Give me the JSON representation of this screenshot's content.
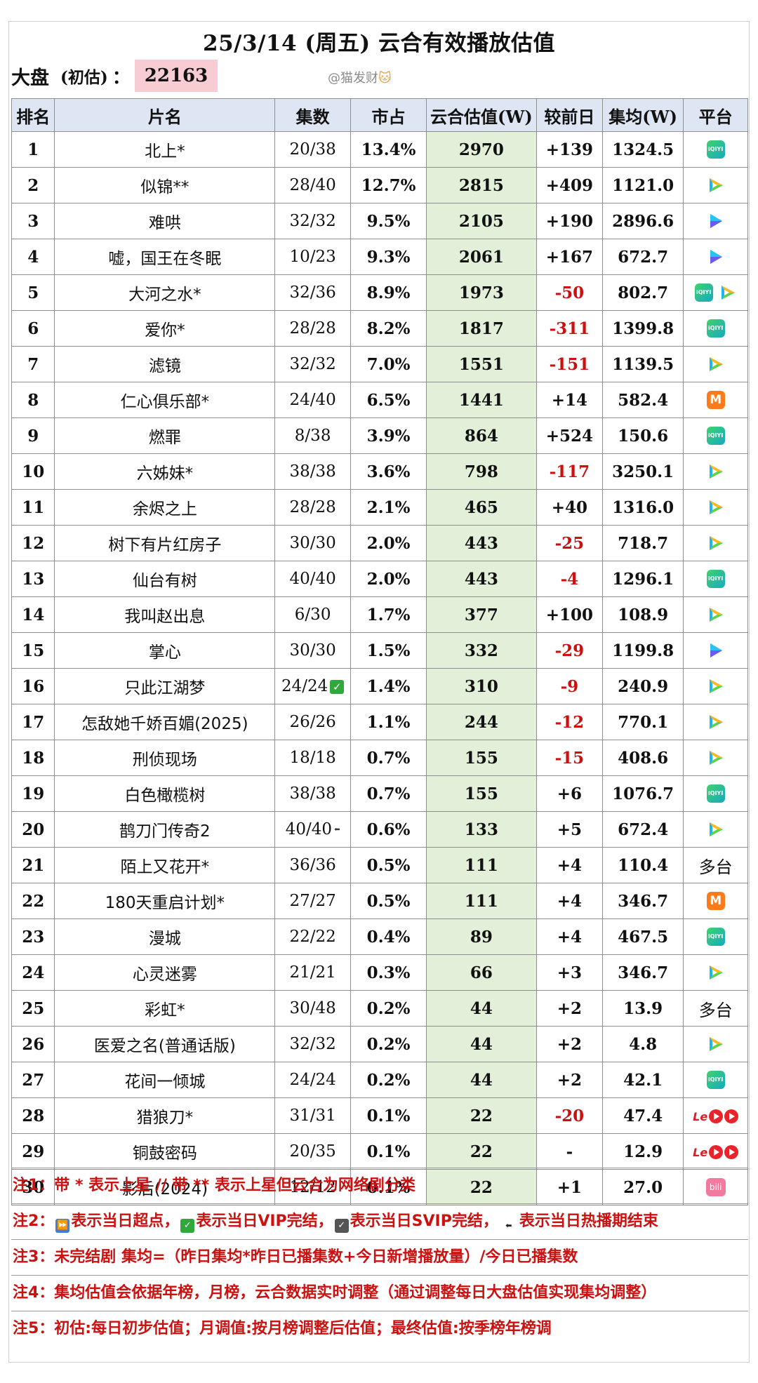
{
  "title": "25/3/14 (周五) 云合有效播放估值",
  "dapan": {
    "label": "大盘",
    "sub": "(初估)",
    "colon": "：",
    "value": "22163"
  },
  "watermark": {
    "text": "@猫发财",
    "emoji": "🐱"
  },
  "headers": {
    "rank": "排名",
    "name": "片名",
    "episodes": "集数",
    "share": "市占",
    "estimate": "云合估值(W)",
    "delta": "较前日",
    "avg": "集均(W)",
    "platform": "平台"
  },
  "rows": [
    {
      "rank": "1",
      "name": "北上*",
      "ep": "20/38",
      "share": "13.4%",
      "est": "2970",
      "delta": "+139",
      "neg": false,
      "avg": "1324.5",
      "plat": [
        "iqiyi"
      ]
    },
    {
      "rank": "2",
      "name": "似锦**",
      "ep": "28/40",
      "share": "12.7%",
      "est": "2815",
      "delta": "+409",
      "neg": false,
      "avg": "1121.0",
      "plat": [
        "tencent"
      ]
    },
    {
      "rank": "3",
      "name": "难哄",
      "ep": "32/32",
      "share": "9.5%",
      "est": "2105",
      "delta": "+190",
      "neg": false,
      "avg": "2896.6",
      "plat": [
        "youku"
      ]
    },
    {
      "rank": "4",
      "name": "嘘，国王在冬眠",
      "ep": "10/23",
      "share": "9.3%",
      "est": "2061",
      "delta": "+167",
      "neg": false,
      "avg": "672.7",
      "plat": [
        "youku"
      ]
    },
    {
      "rank": "5",
      "name": "大河之水*",
      "ep": "32/36",
      "share": "8.9%",
      "est": "1973",
      "delta": "-50",
      "neg": true,
      "avg": "802.7",
      "plat": [
        "iqiyi",
        "tencent"
      ]
    },
    {
      "rank": "6",
      "name": "爱你*",
      "ep": "28/28",
      "share": "8.2%",
      "est": "1817",
      "delta": "-311",
      "neg": true,
      "avg": "1399.8",
      "plat": [
        "iqiyi"
      ]
    },
    {
      "rank": "7",
      "name": "滤镜",
      "ep": "32/32",
      "share": "7.0%",
      "est": "1551",
      "delta": "-151",
      "neg": true,
      "avg": "1139.5",
      "plat": [
        "tencent"
      ]
    },
    {
      "rank": "8",
      "name": "仁心俱乐部*",
      "ep": "24/40",
      "share": "6.5%",
      "est": "1441",
      "delta": "+14",
      "neg": false,
      "avg": "582.4",
      "plat": [
        "mango"
      ]
    },
    {
      "rank": "9",
      "name": "燃罪",
      "ep": "8/38",
      "share": "3.9%",
      "est": "864",
      "delta": "+524",
      "neg": false,
      "avg": "150.6",
      "plat": [
        "iqiyi"
      ]
    },
    {
      "rank": "10",
      "name": "六姊妹*",
      "ep": "38/38",
      "share": "3.6%",
      "est": "798",
      "delta": "-117",
      "neg": true,
      "avg": "3250.1",
      "plat": [
        "tencent"
      ]
    },
    {
      "rank": "11",
      "name": "余烬之上",
      "ep": "28/28",
      "share": "2.1%",
      "est": "465",
      "delta": "+40",
      "neg": false,
      "avg": "1316.0",
      "plat": [
        "tencent"
      ]
    },
    {
      "rank": "12",
      "name": "树下有片红房子",
      "ep": "30/30",
      "share": "2.0%",
      "est": "443",
      "delta": "-25",
      "neg": true,
      "avg": "718.7",
      "plat": [
        "tencent"
      ]
    },
    {
      "rank": "13",
      "name": "仙台有树",
      "ep": "40/40",
      "share": "2.0%",
      "est": "443",
      "delta": "-4",
      "neg": true,
      "avg": "1296.1",
      "plat": [
        "iqiyi"
      ]
    },
    {
      "rank": "14",
      "name": "我叫赵出息",
      "ep": "6/30",
      "share": "1.7%",
      "est": "377",
      "delta": "+100",
      "neg": false,
      "avg": "108.9",
      "plat": [
        "tencent"
      ]
    },
    {
      "rank": "15",
      "name": "掌心",
      "ep": "30/30",
      "share": "1.5%",
      "est": "332",
      "delta": "-29",
      "neg": true,
      "avg": "1199.8",
      "plat": [
        "youku"
      ]
    },
    {
      "rank": "16",
      "name": "只此江湖梦",
      "ep": "24/24",
      "badge": "vip",
      "share": "1.4%",
      "est": "310",
      "delta": "-9",
      "neg": true,
      "avg": "240.9",
      "plat": [
        "tencent"
      ]
    },
    {
      "rank": "17",
      "name": "怎敌她千娇百媚(2025)",
      "ep": "26/26",
      "share": "1.1%",
      "est": "244",
      "delta": "-12",
      "neg": true,
      "avg": "770.1",
      "plat": [
        "tencent"
      ]
    },
    {
      "rank": "18",
      "name": "刑侦现场",
      "ep": "18/18",
      "share": "0.7%",
      "est": "155",
      "delta": "-15",
      "neg": true,
      "avg": "408.6",
      "plat": [
        "tencent"
      ]
    },
    {
      "rank": "19",
      "name": "白色橄榄树",
      "ep": "38/38",
      "share": "0.7%",
      "est": "155",
      "delta": "+6",
      "neg": false,
      "avg": "1076.7",
      "plat": [
        "iqiyi"
      ]
    },
    {
      "rank": "20",
      "name": "鹊刀门传奇2",
      "ep": "40/40",
      "badge": "end",
      "share": "0.6%",
      "est": "133",
      "delta": "+5",
      "neg": false,
      "avg": "672.4",
      "plat": [
        "tencent"
      ]
    },
    {
      "rank": "21",
      "name": "陌上又花开*",
      "ep": "36/36",
      "share": "0.5%",
      "est": "111",
      "delta": "+4",
      "neg": false,
      "avg": "110.4",
      "plat": [
        "multi"
      ]
    },
    {
      "rank": "22",
      "name": "180天重启计划*",
      "ep": "27/27",
      "share": "0.5%",
      "est": "111",
      "delta": "+4",
      "neg": false,
      "avg": "346.7",
      "plat": [
        "mango"
      ]
    },
    {
      "rank": "23",
      "name": "漫城",
      "ep": "22/22",
      "share": "0.4%",
      "est": "89",
      "delta": "+4",
      "neg": false,
      "avg": "467.5",
      "plat": [
        "iqiyi"
      ]
    },
    {
      "rank": "24",
      "name": "心灵迷雾",
      "ep": "21/21",
      "share": "0.3%",
      "est": "66",
      "delta": "+3",
      "neg": false,
      "avg": "346.7",
      "plat": [
        "tencent"
      ]
    },
    {
      "rank": "25",
      "name": "彩虹*",
      "ep": "30/48",
      "share": "0.2%",
      "est": "44",
      "delta": "+2",
      "neg": false,
      "avg": "13.9",
      "plat": [
        "multi"
      ]
    },
    {
      "rank": "26",
      "name": "医爱之名(普通话版)",
      "ep": "32/32",
      "share": "0.2%",
      "est": "44",
      "delta": "+2",
      "neg": false,
      "avg": "4.8",
      "plat": [
        "tencent"
      ]
    },
    {
      "rank": "27",
      "name": "花间一倾城",
      "ep": "24/24",
      "share": "0.2%",
      "est": "44",
      "delta": "+2",
      "neg": false,
      "avg": "42.1",
      "plat": [
        "iqiyi"
      ]
    },
    {
      "rank": "28",
      "name": "猎狼刀*",
      "ep": "31/31",
      "share": "0.1%",
      "est": "22",
      "delta": "-20",
      "neg": true,
      "avg": "47.4",
      "plat": [
        "le"
      ]
    },
    {
      "rank": "29",
      "name": "铜鼓密码",
      "ep": "20/35",
      "share": "0.1%",
      "est": "22",
      "delta": "-",
      "neg": false,
      "avg": "12.9",
      "plat": [
        "le"
      ]
    },
    {
      "rank": "30",
      "name": "影后(2024)",
      "ep": "12/12",
      "share": "0.1%",
      "est": "22",
      "delta": "+1",
      "neg": false,
      "avg": "27.0",
      "plat": [
        "bili"
      ]
    }
  ],
  "platform_labels": {
    "iqiyi": "iQIYI",
    "multi": "多台",
    "mango": "M",
    "le": "Le",
    "bili": "bili"
  },
  "notes": {
    "n1": "注1：带 * 表示上星 // 带 ** 表示上星但云合为网络剧分类",
    "n2_a": "注2：",
    "n2_b": "表示当日超点，",
    "n2_c": "表示当日VIP完结，",
    "n2_d": "表示当日SVIP完结，",
    "n2_e": "表示当日热播期结束",
    "n3": "注3：未完结剧 集均=（昨日集均*昨日已播集数+今日新增播放量）/今日已播集数",
    "n4": "注4：集均估值会依据年榜，月榜，云合数据实时调整（通过调整每日大盘估值实现集均调整）",
    "n5": "注5：初估:每日初步估值；月调值:按月榜调整后估值；最终估值:按季榜年榜调"
  },
  "colors": {
    "negative": "#cc1010",
    "estimate_bg": "#e2efd9",
    "header_bg": "#dde6f2",
    "note_red": "#cc1111",
    "dapan_bg": "#f7cdd3"
  }
}
